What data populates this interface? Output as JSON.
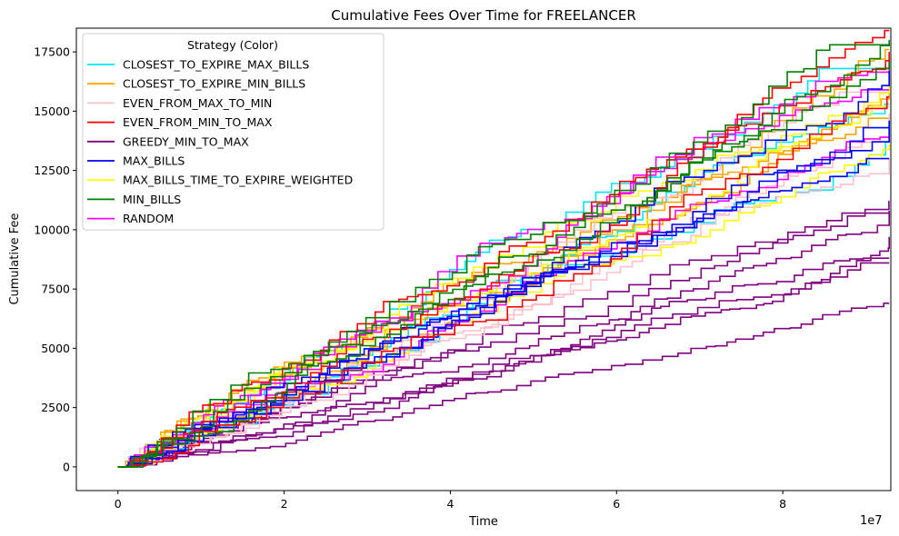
{
  "chart_data": {
    "type": "line",
    "title": "Cumulative Fees Over Time for FREELANCER",
    "xlabel": "Time",
    "ylabel": "Cumulative Fee",
    "x_multiplier_label": "1e7",
    "xlim": [
      -0.5,
      9.3
    ],
    "ylim": [
      -1000,
      18500
    ],
    "x_ticks": [
      0,
      2,
      4,
      6,
      8
    ],
    "x_tick_labels": [
      "0",
      "2",
      "4",
      "6",
      "8"
    ],
    "y_ticks": [
      0,
      2500,
      5000,
      7500,
      10000,
      12500,
      15000,
      17500
    ],
    "y_tick_labels": [
      "0",
      "2500",
      "5000",
      "7500",
      "10000",
      "12500",
      "15000",
      "17500"
    ],
    "grid": false,
    "legend": {
      "title": "Strategy (Color)",
      "placement": "upper-left",
      "entries": [
        {
          "name": "CLOSEST_TO_EXPIRE_MAX_BILLS",
          "color": "#00e5ff"
        },
        {
          "name": "CLOSEST_TO_EXPIRE_MIN_BILLS",
          "color": "#ffa500"
        },
        {
          "name": "EVEN_FROM_MAX_TO_MIN",
          "color": "#ffc0cb"
        },
        {
          "name": "EVEN_FROM_MIN_TO_MAX",
          "color": "#ff0000"
        },
        {
          "name": "GREEDY_MIN_TO_MAX",
          "color": "#800080"
        },
        {
          "name": "MAX_BILLS",
          "color": "#0000ff"
        },
        {
          "name": "MAX_BILLS_TIME_TO_EXPIRE_WEIGHTED",
          "color": "#ffff00"
        },
        {
          "name": "MIN_BILLS",
          "color": "#008000"
        },
        {
          "name": "RANDOM",
          "color": "#ff00ff"
        }
      ]
    },
    "series": [
      {
        "strategy": "CLOSEST_TO_EXPIRE_MAX_BILLS",
        "final": [
          16800,
          15300,
          14200
        ]
      },
      {
        "strategy": "CLOSEST_TO_EXPIRE_MIN_BILLS",
        "final": [
          17600,
          16200,
          14700
        ]
      },
      {
        "strategy": "EVEN_FROM_MAX_TO_MIN",
        "final": [
          15800,
          13000,
          14900
        ]
      },
      {
        "strategy": "EVEN_FROM_MIN_TO_MAX",
        "final": [
          18400,
          17500,
          15600
        ]
      },
      {
        "strategy": "GREEDY_MIN_TO_MAX",
        "final": [
          11200,
          10800,
          9700,
          8800,
          8600,
          6900,
          10700
        ]
      },
      {
        "strategy": "MAX_BILLS",
        "final": [
          14600,
          13000,
          16700,
          14300
        ]
      },
      {
        "strategy": "MAX_BILLS_TIME_TO_EXPIRE_WEIGHTED",
        "final": [
          16900,
          13600,
          15200
        ]
      },
      {
        "strategy": "MIN_BILLS",
        "final": [
          18000,
          17800,
          17100
        ]
      },
      {
        "strategy": "RANDOM",
        "final": [
          17200,
          15900,
          13900
        ]
      }
    ]
  }
}
